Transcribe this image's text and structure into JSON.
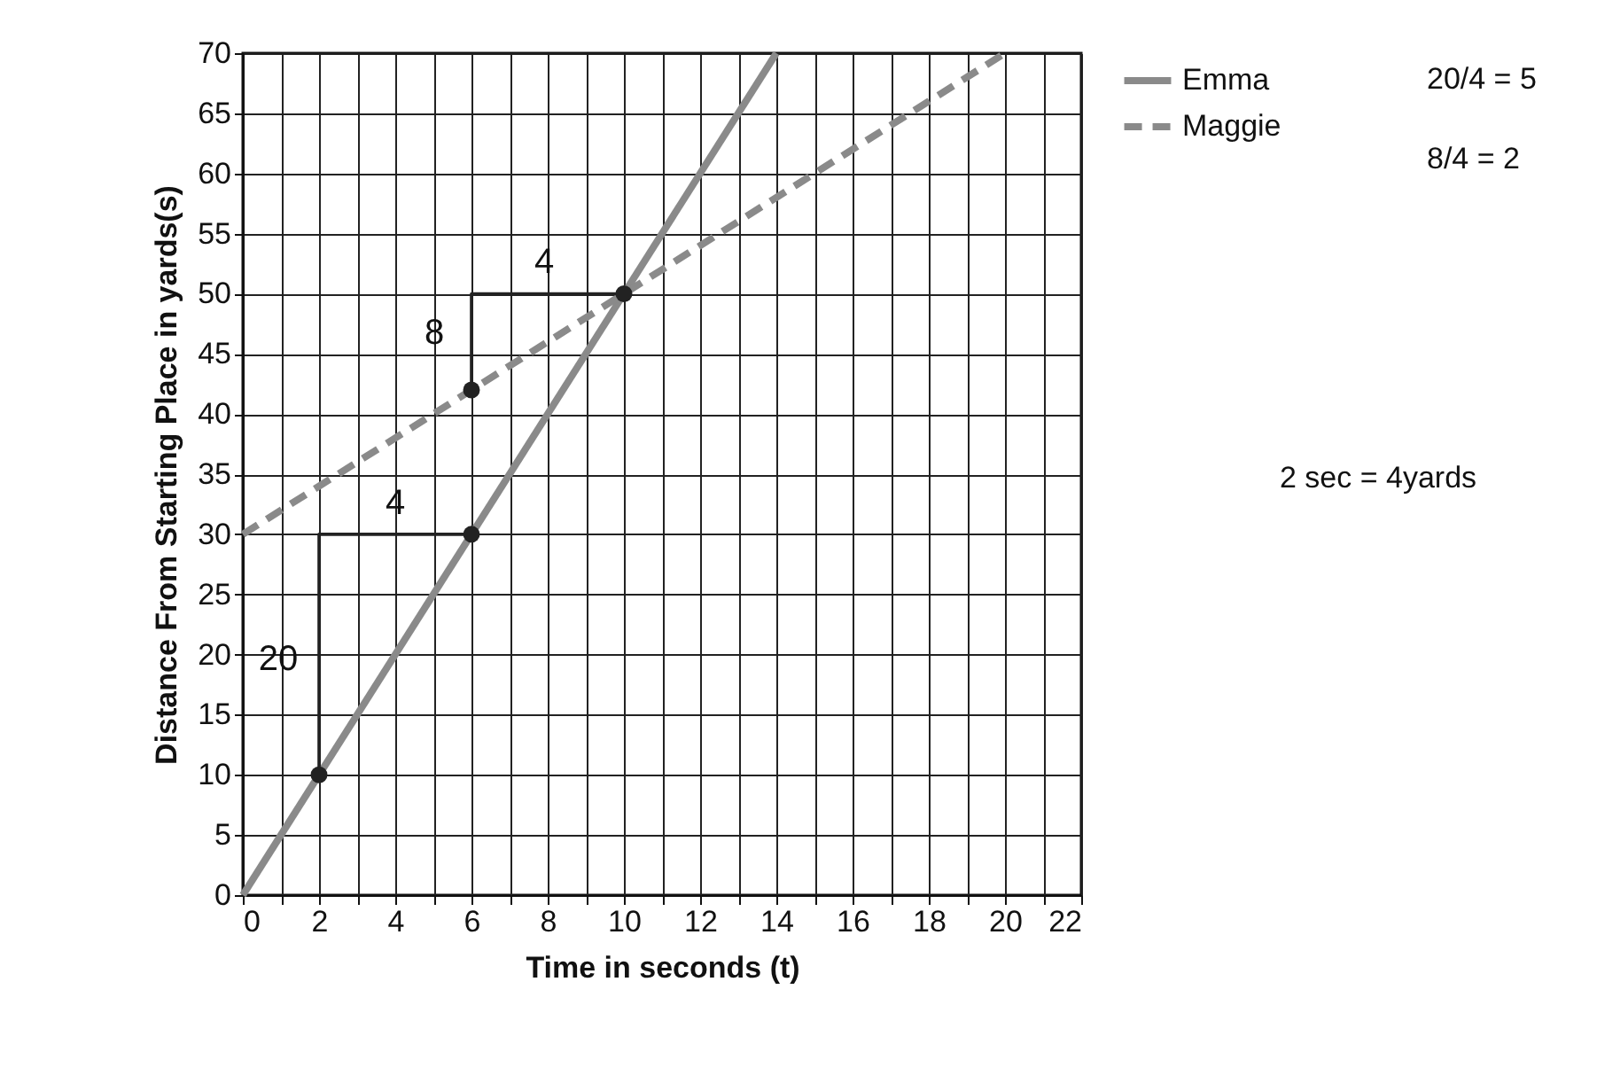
{
  "chart_data": {
    "type": "line",
    "xlabel": "Time in seconds (t)",
    "ylabel": "Distance From Starting Place in yards(s)",
    "xlim": [
      0,
      22
    ],
    "ylim": [
      0,
      70
    ],
    "xticks": [
      0,
      {
        "value": 1,
        "label": null
      },
      2,
      {
        "value": 3,
        "label": null
      },
      4,
      {
        "value": 5,
        "label": null
      },
      6,
      {
        "value": 7,
        "label": null
      },
      8,
      {
        "value": 9,
        "label": null
      },
      10,
      {
        "value": 11,
        "label": null
      },
      12,
      {
        "value": 13,
        "label": null
      },
      14,
      {
        "value": 15,
        "label": null
      },
      16,
      {
        "value": 17,
        "label": null
      },
      18,
      {
        "value": 19,
        "label": null
      },
      20,
      {
        "value": 21,
        "label": null
      },
      22
    ],
    "yticks": [
      0,
      5,
      10,
      15,
      20,
      25,
      30,
      35,
      40,
      45,
      50,
      55,
      60,
      65,
      70
    ],
    "grid": true,
    "legend": "top right",
    "series": [
      {
        "name": "Emma",
        "color": "#8a8a8a",
        "line_style": "solid",
        "x": [
          0,
          14
        ],
        "values": [
          0,
          70
        ]
      },
      {
        "name": "Maggie",
        "color": "#8a8a8a",
        "line_style": "dashed",
        "x": [
          0,
          20
        ],
        "values": [
          30,
          70
        ]
      },
      {
        "type": "line",
        "color": "#222222",
        "line_style": "solid",
        "x": [
          2,
          2,
          6
        ],
        "values": [
          10,
          30,
          30
        ]
      },
      {
        "type": "line",
        "color": "#222222",
        "line_style": "solid",
        "x": [
          6,
          6,
          10
        ],
        "values": [
          42,
          50,
          50
        ]
      },
      {
        "type": "scatter",
        "color": "#222222",
        "marker": "circle",
        "x": [
          2,
          6,
          6,
          10
        ],
        "values": [
          10,
          30,
          42,
          50
        ]
      }
    ],
    "annotations": [
      "20",
      "4",
      "8",
      "4",
      "20/4 = 5",
      "8/4 = 2",
      "2 sec = 4yards"
    ]
  }
}
